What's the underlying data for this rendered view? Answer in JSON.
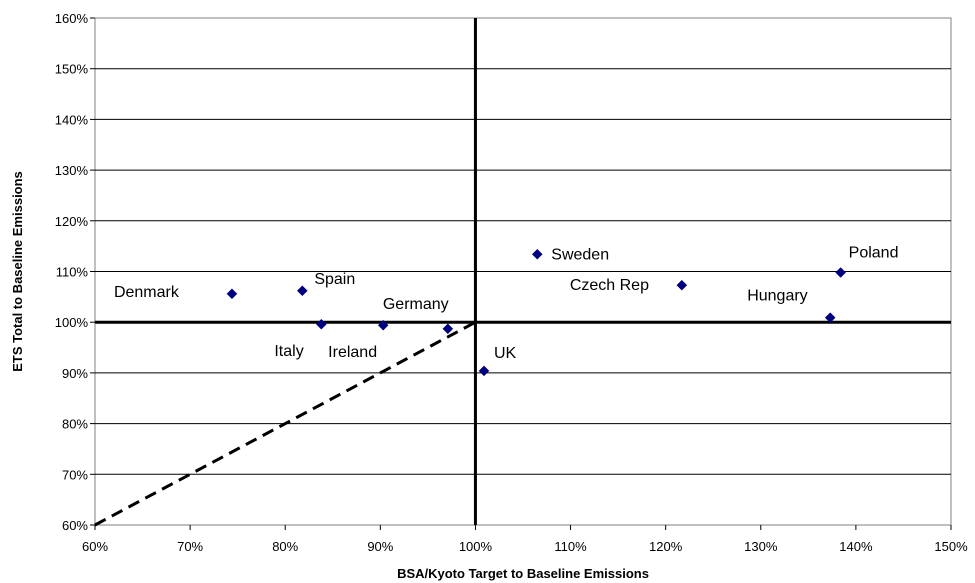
{
  "chart_data": {
    "type": "scatter",
    "xlabel": "BSA/Kyoto Target to Baseline Emissions",
    "ylabel": "ETS Total to Baseline Emissions",
    "xlim": [
      0.6,
      1.5
    ],
    "ylim": [
      0.6,
      1.6
    ],
    "x_ticks": [
      "60%",
      "70%",
      "80%",
      "90%",
      "100%",
      "110%",
      "120%",
      "130%",
      "140%",
      "150%"
    ],
    "y_ticks": [
      "60%",
      "70%",
      "80%",
      "90%",
      "100%",
      "110%",
      "120%",
      "130%",
      "140%",
      "150%",
      "160%"
    ],
    "grid": "horizontal",
    "marker_color": "#000080",
    "points": [
      {
        "label": "Denmark",
        "x": 0.744,
        "y": 1.056
      },
      {
        "label": "Spain",
        "x": 0.818,
        "y": 1.062
      },
      {
        "label": "Italy",
        "x": 0.838,
        "y": 0.996
      },
      {
        "label": "Ireland",
        "x": 0.903,
        "y": 0.994
      },
      {
        "label": "Germany",
        "x": 0.971,
        "y": 0.987
      },
      {
        "label": "UK",
        "x": 1.009,
        "y": 0.904
      },
      {
        "label": "Sweden",
        "x": 1.065,
        "y": 1.134
      },
      {
        "label": "Czech Rep",
        "x": 1.217,
        "y": 1.073
      },
      {
        "label": "Hungary",
        "x": 1.373,
        "y": 1.009
      },
      {
        "label": "Poland",
        "x": 1.384,
        "y": 1.098
      }
    ],
    "reference_lines": [
      {
        "kind": "vertical",
        "x": 1.0,
        "style": "solid"
      },
      {
        "kind": "horizontal",
        "y": 1.0,
        "style": "solid"
      },
      {
        "kind": "diagonal",
        "from": [
          0.6,
          0.6
        ],
        "to": [
          1.0,
          1.0
        ],
        "style": "dashed"
      }
    ]
  }
}
